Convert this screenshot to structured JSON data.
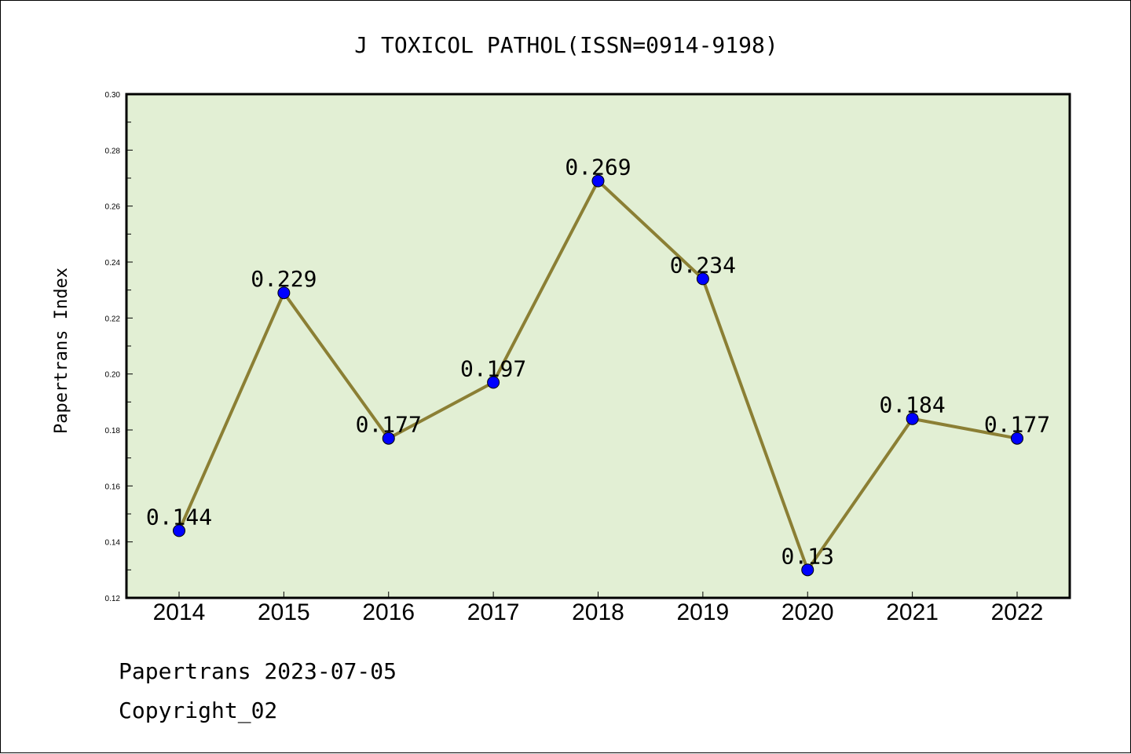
{
  "chart_data": {
    "type": "line",
    "title": "J TOXICOL PATHOL(ISSN=0914-9198)",
    "ylabel": "Papertrans Index",
    "xlabel": "",
    "categories": [
      "2014",
      "2015",
      "2016",
      "2017",
      "2018",
      "2019",
      "2020",
      "2021",
      "2022"
    ],
    "values": [
      0.144,
      0.229,
      0.177,
      0.197,
      0.269,
      0.234,
      0.13,
      0.184,
      0.177
    ],
    "data_labels": [
      "0.144",
      "0.229",
      "0.177",
      "0.197",
      "0.269",
      "0.234",
      "0.13",
      "0.184",
      "0.177"
    ],
    "ylim": [
      0.12,
      0.3
    ],
    "yticks": [
      "0.12",
      "0.14",
      "0.16",
      "0.18",
      "0.20",
      "0.22",
      "0.24",
      "0.26",
      "0.28",
      "0.30"
    ],
    "grid": false,
    "colors": {
      "plot_bg": "#e2efd4",
      "line": "#8b7f34",
      "marker": "#0000ff"
    }
  },
  "footer": {
    "line1": "Papertrans 2023-07-05",
    "line2": "Copyright_02"
  }
}
